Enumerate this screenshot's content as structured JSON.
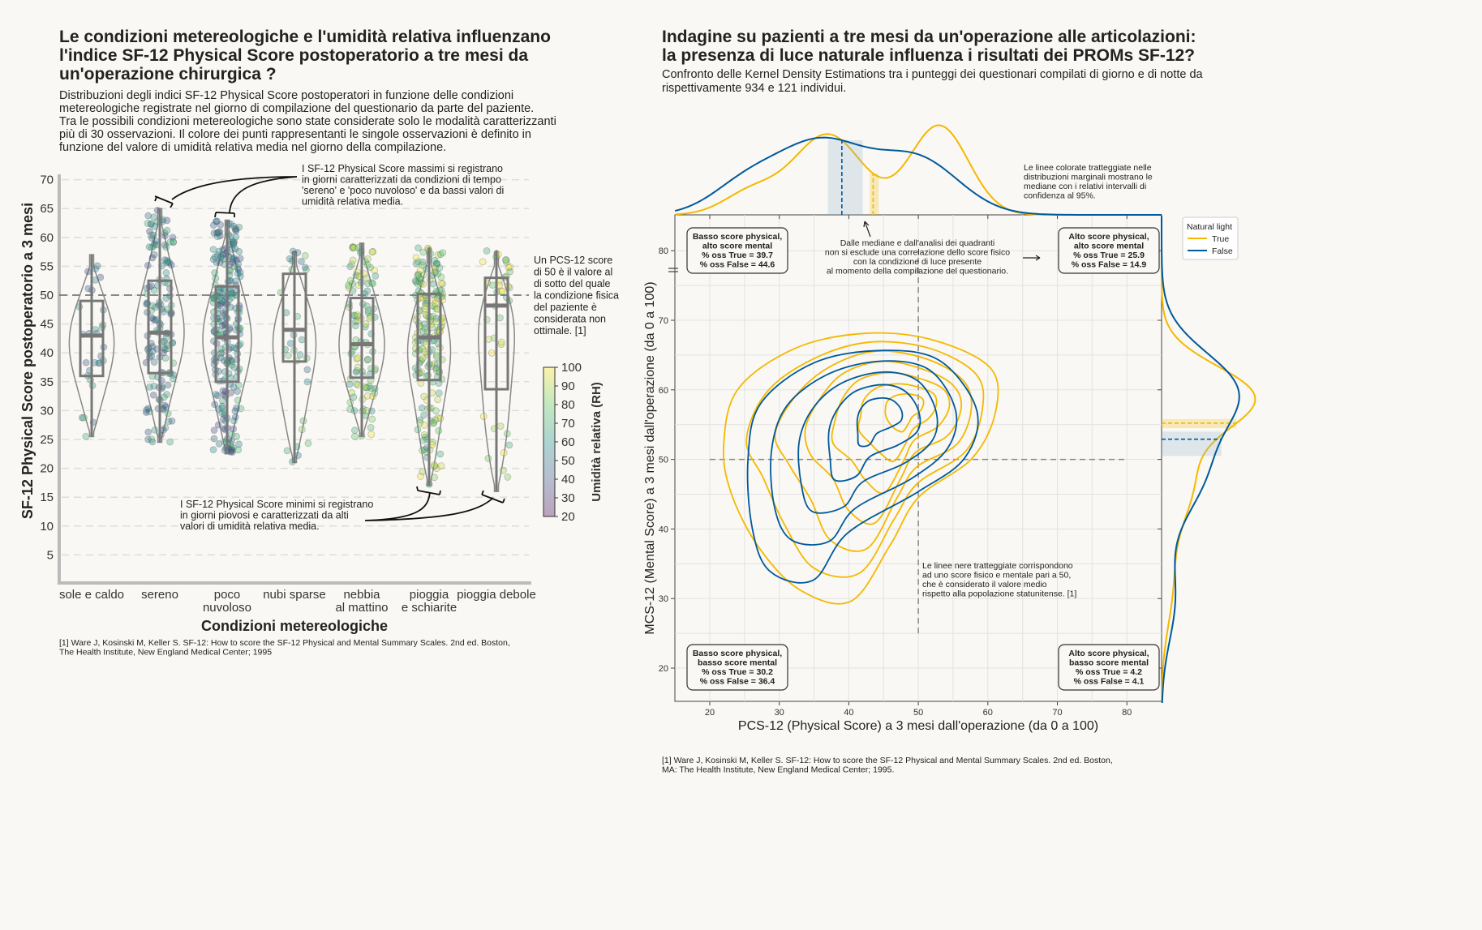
{
  "left": {
    "title": [
      "Le condizioni metereologiche e l'umidità relativa influenzano",
      "l'indice SF-12 Physical Score postoperatorio a tre mesi da",
      "un'operazione chirurgica ?"
    ],
    "subtitle": [
      "Distribuzioni degli indici SF-12 Physical Score postoperatori in funzione delle condizioni",
      "metereologiche registrate nel giorno di compilazione del questionario da parte del paziente.",
      "Tra le possibili condizioni metereologiche sono state considerate solo le modalità caratterizzanti",
      "più di 30 osservazioni. Il colore dei punti rappresentanti le singole osservazioni è definito in",
      "funzione del valore di umidità relativa media nel giorno della compilazione."
    ],
    "annotation_max": [
      "I SF-12 Physical Score massimi si registrano",
      "in giorni caratterizzati da condizioni di tempo",
      "'sereno' e 'poco nuvoloso' e da bassi valori di",
      "umidità relativa media."
    ],
    "annotation_min": [
      "I SF-12 Physical Score minimi si registrano",
      "in giorni piovosi e caratterizzati da alti",
      "valori di umidità relativa media."
    ],
    "annotation_50": [
      "Un PCS-12 score",
      "di 50 è il valore al",
      "di sotto del quale",
      "la condizione fisica",
      "del paziente è",
      "considerata non",
      "ottimale. [1]"
    ],
    "reference": [
      "[1] Ware J, Kosinski M, Keller S. SF-12: How to score the SF-12 Physical and Mental Summary Scales. 2nd ed. Boston,",
      "The Health Institute, New England Medical Center; 1995"
    ]
  },
  "right": {
    "title": [
      "Indagine su pazienti a tre mesi da un'operazione alle articolazioni:",
      "la presenza di luce naturale influenza i risultati dei PROMs SF-12?"
    ],
    "subtitle": [
      "Confronto delle Kernel Density Estimations tra i punteggi dei questionari compilati di giorno e di notte da",
      "rispettivamente 934 e 121 individui."
    ],
    "annotation_marginal": [
      "Le linee colorate tratteggiate nelle",
      "distribuzioni marginali mostrano le",
      "mediane con i relativi intervalli di",
      "confidenza al 95%."
    ],
    "annotation_quadrants": [
      "Dalle mediane e dall'analisi dei quadranti",
      "non si esclude una correlazione dello score fisico",
      "con la condizione di luce presente",
      "al momento della compilazione del questionario."
    ],
    "annotation_50": [
      "Le linee nere tratteggiate corrispondono",
      "ad uno score fisico e mentale pari a 50,",
      "che è considerato il valore medio",
      "rispetto alla popolazione statunitense. [1]"
    ],
    "quadrants": {
      "top_left": [
        "Basso score physical,",
        "alto score mental",
        "% oss True = 39.7",
        "% oss False = 44.6"
      ],
      "top_right": [
        "Alto score physical,",
        "alto score mental",
        "% oss True = 25.9",
        "% oss False = 14.9"
      ],
      "bottom_left": [
        "Basso score physical,",
        "basso score mental",
        "% oss True = 30.2",
        "% oss False = 36.4"
      ],
      "bottom_right": [
        "Alto score physical,",
        "basso score mental",
        "% oss True = 4.2",
        "% oss False = 4.1"
      ]
    },
    "reference": [
      "[1] Ware J, Kosinski M, Keller S. SF-12: How to score the SF-12 Physical and Mental Summary Scales. 2nd ed. Boston,",
      "MA: The Health Institute, New England Medical Center; 1995."
    ]
  },
  "chart_data": [
    {
      "type": "violin",
      "xlabel": "Condizioni metereologiche",
      "ylabel": "SF-12 Physical Score postoperatorio a 3 mesi",
      "ylim": [
        5,
        70
      ],
      "yticks": [
        5,
        10,
        15,
        20,
        25,
        30,
        35,
        40,
        45,
        50,
        55,
        60,
        65,
        70
      ],
      "grid": "horizontal dashed",
      "reference_line": 50,
      "categories": [
        [
          "sole e caldo"
        ],
        [
          "sereno"
        ],
        [
          "poco",
          "nuvoloso"
        ],
        [
          "nubi sparse"
        ],
        [
          "nebbia",
          "al mattino"
        ],
        [
          "pioggia",
          "e schiarite"
        ],
        [
          "pioggia debole"
        ]
      ],
      "box_stats": [
        {
          "min": 25.5,
          "q1": 36,
          "median": 43,
          "q3": 49,
          "max": 57,
          "rh_typical": 55
        },
        {
          "min": 24.5,
          "q1": 36.5,
          "median": 43.5,
          "q3": 52.5,
          "max": 65,
          "rh_typical": 55
        },
        {
          "min": 22.5,
          "q1": 35,
          "median": 42.7,
          "q3": 51.5,
          "max": 63,
          "rh_typical": 55
        },
        {
          "min": 21,
          "q1": 38.5,
          "median": 44,
          "q3": 53.7,
          "max": 57.7,
          "rh_typical": 68
        },
        {
          "min": 25.5,
          "q1": 35.7,
          "median": 41.5,
          "q3": 49.5,
          "max": 59,
          "rh_typical": 80
        },
        {
          "min": 17,
          "q1": 35.3,
          "median": 42.7,
          "q3": 50.2,
          "max": 58.3,
          "rh_typical": 82
        },
        {
          "min": 16,
          "q1": 33.7,
          "median": 48.2,
          "q3": 53,
          "max": 57.8,
          "rh_typical": 85
        }
      ],
      "colorbar": {
        "label": "Umidità relativa (RH)",
        "range": [
          20,
          100
        ],
        "ticks": [
          20,
          30,
          40,
          50,
          60,
          70,
          80,
          90,
          100
        ],
        "colormap": "viridis"
      }
    },
    {
      "type": "kde-contour",
      "xlabel": "PCS-12 (Physical Score) a 3 mesi dall'operazione (da 0 a 100)",
      "ylabel": "MCS-12 (Mental Score) a 3 mesi dall'operazione (da 0 a 100)",
      "xlim": [
        15,
        85
      ],
      "ylim": [
        15,
        85
      ],
      "xticks": [
        20,
        30,
        40,
        50,
        60,
        70,
        80
      ],
      "yticks": [
        20,
        30,
        40,
        50,
        60,
        70,
        80
      ],
      "reference_lines": {
        "x": 50,
        "y": 50
      },
      "legend": {
        "title": "Natural light",
        "placement": "top-right"
      },
      "series": [
        {
          "name": "True",
          "color": "#f5b800",
          "outer_contour": [
            [
              22,
              52
            ],
            [
              25,
              60
            ],
            [
              32,
              66
            ],
            [
              42,
              68.5
            ],
            [
              52,
              67
            ],
            [
              60,
              63
            ],
            [
              61.5,
              57
            ],
            [
              58,
              50
            ],
            [
              50,
              45
            ],
            [
              46,
              38
            ],
            [
              40,
              28.5
            ],
            [
              33,
              31
            ],
            [
              28,
              38
            ],
            [
              23,
              45
            ]
          ],
          "mode": [
            49,
            58
          ],
          "levels": [
            1,
            0.85,
            0.7,
            0.56,
            0.42,
            0.28,
            0.14
          ],
          "x_median": 43.5,
          "x_median_ci": [
            43,
            44.3
          ],
          "y_median": 55.2,
          "y_median_ci": [
            54.5,
            55.8
          ],
          "x_marginal_peaks": [
            [
              37,
              0.9,
              5
            ],
            [
              53,
              1,
              4.2
            ],
            [
              26,
              0.25,
              4
            ]
          ],
          "y_marginal_peaks": [
            [
              59,
              1,
              4.5
            ],
            [
              47,
              0.35,
              6
            ],
            [
              32,
              0.12,
              6
            ]
          ]
        },
        {
          "name": "False",
          "color": "#00599b",
          "outer_contour": [
            [
              25.5,
              50
            ],
            [
              28,
              58
            ],
            [
              35,
              64
            ],
            [
              45,
              66
            ],
            [
              53,
              64
            ],
            [
              58,
              57
            ],
            [
              57,
              50
            ],
            [
              50,
              45
            ],
            [
              40,
              40
            ],
            [
              35,
              33
            ],
            [
              28,
              33
            ],
            [
              26,
              40
            ]
          ],
          "mode": [
            45,
            57
          ],
          "levels": [
            1,
            0.8,
            0.6,
            0.4,
            0.2
          ],
          "x_median": 39,
          "x_median_ci": [
            37,
            42
          ],
          "y_median": 52.9,
          "y_median_ci": [
            50.5,
            54
          ],
          "x_marginal_peaks": [
            [
              36,
              0.8,
              6.5
            ],
            [
              50,
              0.6,
              6
            ],
            [
              25,
              0.3,
              5
            ]
          ],
          "y_marginal_peaks": [
            [
              60,
              0.8,
              5.5
            ],
            [
              48,
              0.45,
              6
            ],
            [
              30,
              0.15,
              6
            ]
          ]
        }
      ]
    }
  ]
}
